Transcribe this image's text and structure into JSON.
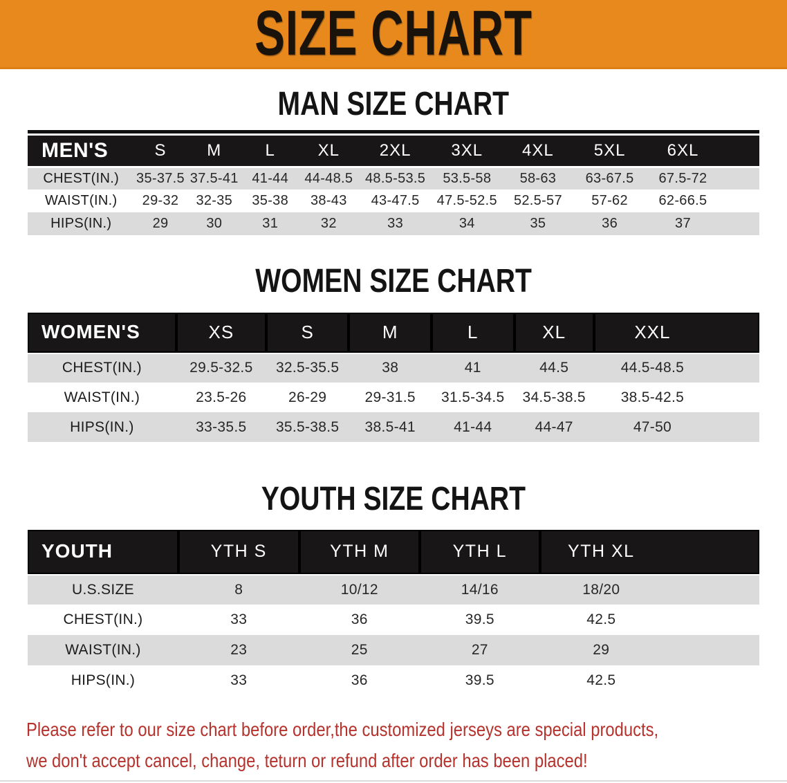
{
  "banner": {
    "title": "SIZE CHART"
  },
  "sections": [
    {
      "id": "men",
      "title": "MAN SIZE CHART",
      "table": {
        "header": [
          "MEN'S",
          "S",
          "M",
          "L",
          "XL",
          "2XL",
          "3XL",
          "4XL",
          "5XL",
          "6XL"
        ],
        "rows": [
          [
            "CHEST(IN.)",
            "35-37.5",
            "37.5-41",
            "41-44",
            "44-48.5",
            "48.5-53.5",
            "53.5-58",
            "58-63",
            "63-67.5",
            "67.5-72"
          ],
          [
            "WAIST(IN.)",
            "29-32",
            "32-35",
            "35-38",
            "38-43",
            "43-47.5",
            "47.5-52.5",
            "52.5-57",
            "57-62",
            "62-66.5"
          ],
          [
            "HIPS(IN.)",
            "29",
            "30",
            "31",
            "32",
            "33",
            "34",
            "35",
            "36",
            "37"
          ]
        ]
      }
    },
    {
      "id": "women",
      "title": "WOMEN SIZE CHART",
      "table": {
        "header": [
          "WOMEN'S",
          "XS",
          "S",
          "M",
          "L",
          "XL",
          "XXL"
        ],
        "rows": [
          [
            "CHEST(IN.)",
            "29.5-32.5",
            "32.5-35.5",
            "38",
            "41",
            "44.5",
            "44.5-48.5"
          ],
          [
            "WAIST(IN.)",
            "23.5-26",
            "26-29",
            "29-31.5",
            "31.5-34.5",
            "34.5-38.5",
            "38.5-42.5"
          ],
          [
            "HIPS(IN.)",
            "33-35.5",
            "35.5-38.5",
            "38.5-41",
            "41-44",
            "44-47",
            "47-50"
          ]
        ]
      }
    },
    {
      "id": "youth",
      "title": "YOUTH SIZE CHART",
      "table": {
        "header": [
          "YOUTH",
          "YTH S",
          "YTH M",
          "YTH L",
          "YTH XL"
        ],
        "rows": [
          [
            "U.S.SIZE",
            "8",
            "10/12",
            "14/16",
            "18/20"
          ],
          [
            "CHEST(IN.)",
            "33",
            "36",
            "39.5",
            "42.5"
          ],
          [
            "WAIST(IN.)",
            "23",
            "25",
            "27",
            "29"
          ],
          [
            "HIPS(IN.)",
            "33",
            "36",
            "39.5",
            "42.5"
          ]
        ]
      }
    }
  ],
  "disclaimer": {
    "line1": "Please refer to our size chart before order,the customized jerseys are special products,",
    "line2": "we don't accept cancel, change, teturn or refund after order has been placed!"
  },
  "colors": {
    "banner_orange": "#e8891e",
    "table_header_black": "#1a1817",
    "row_gray": "#dbdbdb",
    "row_white": "#ffffff",
    "disclaimer_red": "#b5322d",
    "title_black": "#141414"
  }
}
